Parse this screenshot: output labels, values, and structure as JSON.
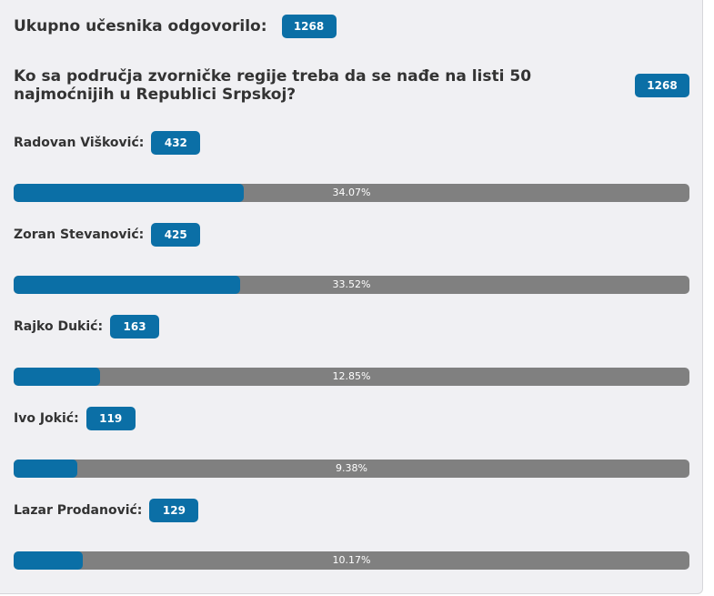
{
  "header": {
    "label": "Ukupno učesnika odgovorilo:",
    "total": 1268
  },
  "question": {
    "text": "Ko sa područja zvorničke regije treba da se nađe na listi 50 najmoćnijih u Republici Srpskoj?",
    "total": 1268
  },
  "options": [
    {
      "name": "Radovan Višković:",
      "votes": 432,
      "percent": {
        "value": 34.07,
        "label": "34.07%"
      }
    },
    {
      "name": "Zoran Stevanović:",
      "votes": 425,
      "percent": {
        "value": 33.52,
        "label": "33.52%"
      }
    },
    {
      "name": "Rajko Dukić:",
      "votes": 163,
      "percent": {
        "value": 12.85,
        "label": "12.85%"
      }
    },
    {
      "name": "Ivo Jokić:",
      "votes": 119,
      "percent": {
        "value": 9.38,
        "label": "9.38%"
      }
    },
    {
      "name": "Lazar Prodanović:",
      "votes": 129,
      "percent": {
        "value": 10.17,
        "label": "10.17%"
      }
    }
  ]
}
